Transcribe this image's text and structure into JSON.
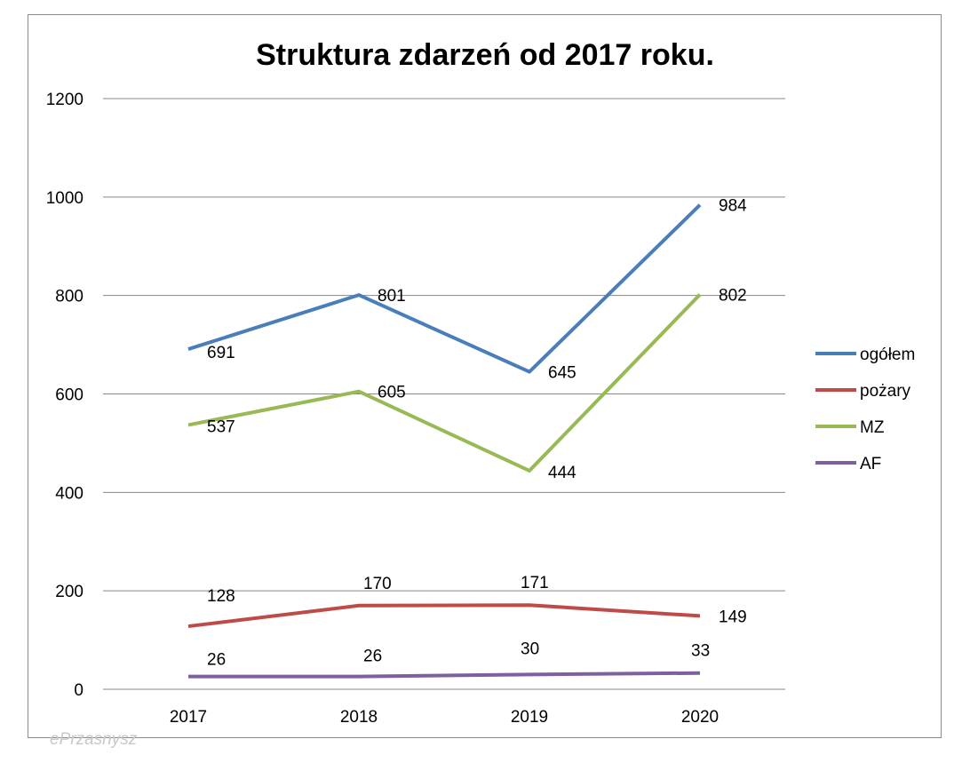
{
  "chart_data": {
    "type": "line",
    "title": "Struktura zdarzeń od 2017 roku.",
    "categories": [
      "2017",
      "2018",
      "2019",
      "2020"
    ],
    "series": [
      {
        "name": "ogółem",
        "color": "#4a7ebb",
        "values": [
          691,
          801,
          645,
          984
        ]
      },
      {
        "name": "pożary",
        "color": "#be4b48",
        "values": [
          128,
          170,
          171,
          149
        ]
      },
      {
        "name": "MZ",
        "color": "#98b954",
        "values": [
          537,
          605,
          444,
          802
        ]
      },
      {
        "name": "AF",
        "color": "#7d60a0",
        "values": [
          26,
          26,
          30,
          33
        ]
      }
    ],
    "ylim": [
      0,
      1200
    ],
    "yticks": [
      0,
      200,
      400,
      600,
      800,
      1000,
      1200
    ],
    "grid": true,
    "legend": "right",
    "data_labels": true
  },
  "watermark": "ePrzasnysz"
}
